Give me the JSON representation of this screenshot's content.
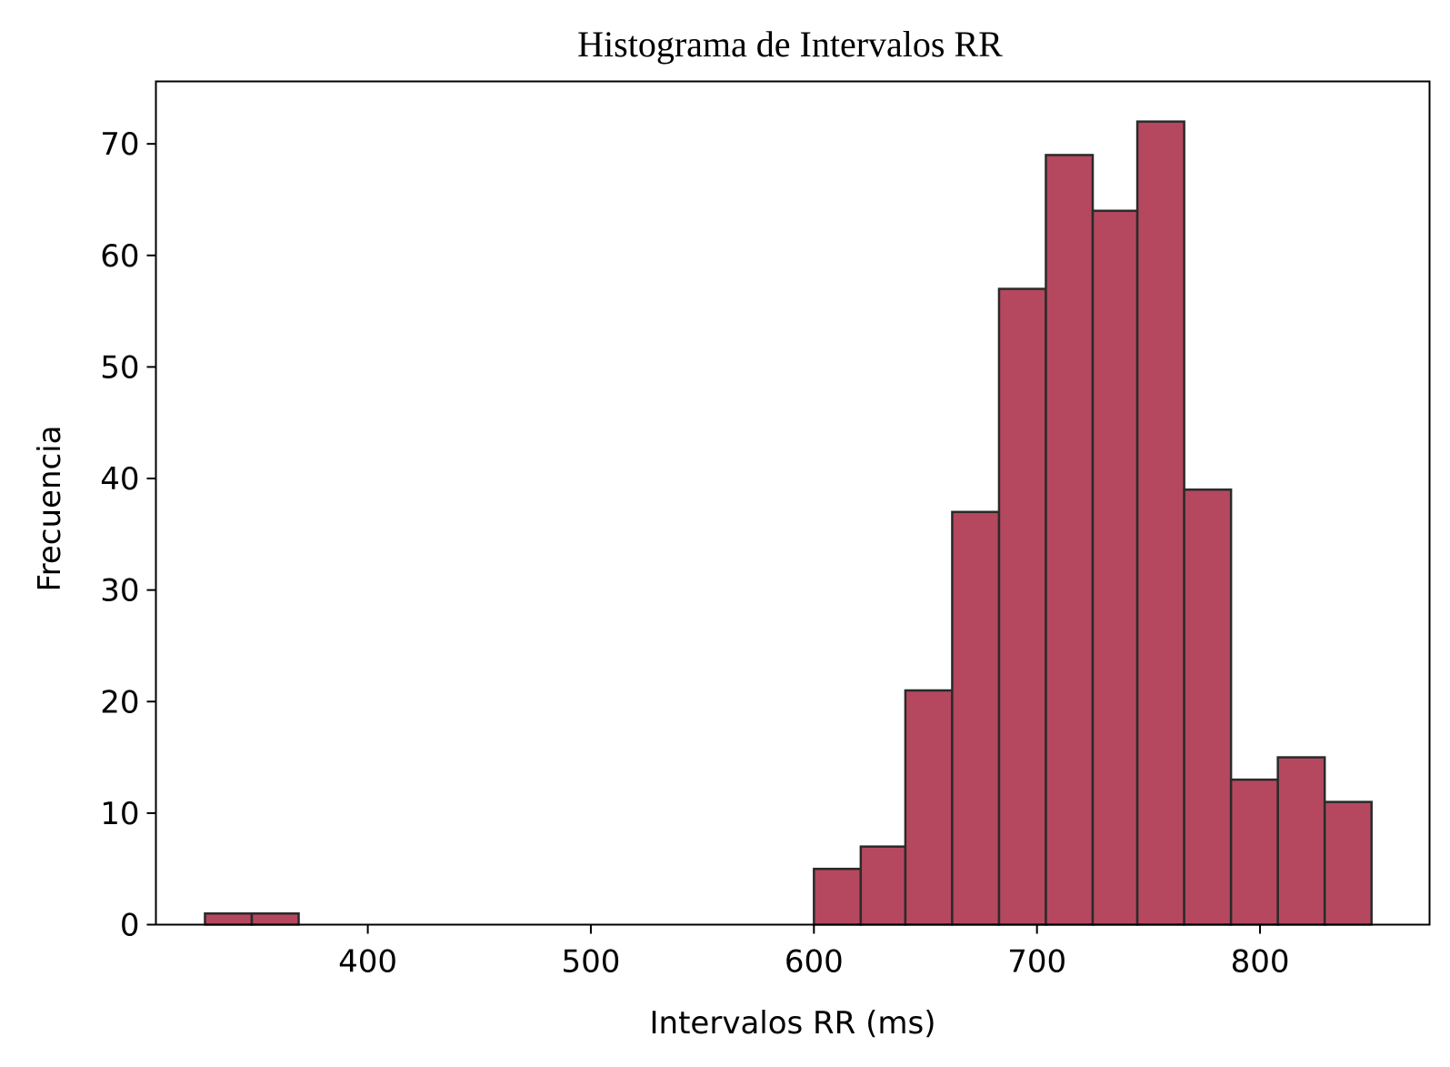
{
  "chart_data": {
    "type": "bar",
    "title": "Histograma de Intervalos RR",
    "xlabel": "Intervalos RR (ms)",
    "ylabel": "Frecuencia",
    "xlim": [
      305,
      876
    ],
    "ylim": [
      0,
      75.6
    ],
    "xticks": [
      400,
      500,
      600,
      700,
      800
    ],
    "yticks": [
      0,
      10,
      20,
      30,
      40,
      50,
      60,
      70
    ],
    "grid": false,
    "bar_color": "#b5485e",
    "edge_color": "#2a2a2a",
    "bins": [
      {
        "start": 327,
        "end": 348,
        "count": 1
      },
      {
        "start": 348,
        "end": 369,
        "count": 1
      },
      {
        "start": 369,
        "end": 390,
        "count": 0
      },
      {
        "start": 390,
        "end": 411,
        "count": 0
      },
      {
        "start": 411,
        "end": 432,
        "count": 0
      },
      {
        "start": 432,
        "end": 453,
        "count": 0
      },
      {
        "start": 453,
        "end": 474,
        "count": 0
      },
      {
        "start": 474,
        "end": 495,
        "count": 0
      },
      {
        "start": 495,
        "end": 516,
        "count": 0
      },
      {
        "start": 516,
        "end": 537,
        "count": 0
      },
      {
        "start": 537,
        "end": 558,
        "count": 0
      },
      {
        "start": 558,
        "end": 579,
        "count": 0
      },
      {
        "start": 579,
        "end": 600,
        "count": 0
      },
      {
        "start": 600,
        "end": 621,
        "count": 5
      },
      {
        "start": 621,
        "end": 641,
        "count": 7
      },
      {
        "start": 641,
        "end": 662,
        "count": 21
      },
      {
        "start": 662,
        "end": 683,
        "count": 37
      },
      {
        "start": 683,
        "end": 704,
        "count": 57
      },
      {
        "start": 704,
        "end": 725,
        "count": 69
      },
      {
        "start": 725,
        "end": 745,
        "count": 64
      },
      {
        "start": 745,
        "end": 766,
        "count": 72
      },
      {
        "start": 766,
        "end": 787,
        "count": 39
      },
      {
        "start": 787,
        "end": 808,
        "count": 13
      },
      {
        "start": 808,
        "end": 829,
        "count": 15
      },
      {
        "start": 829,
        "end": 850,
        "count": 11
      }
    ]
  }
}
